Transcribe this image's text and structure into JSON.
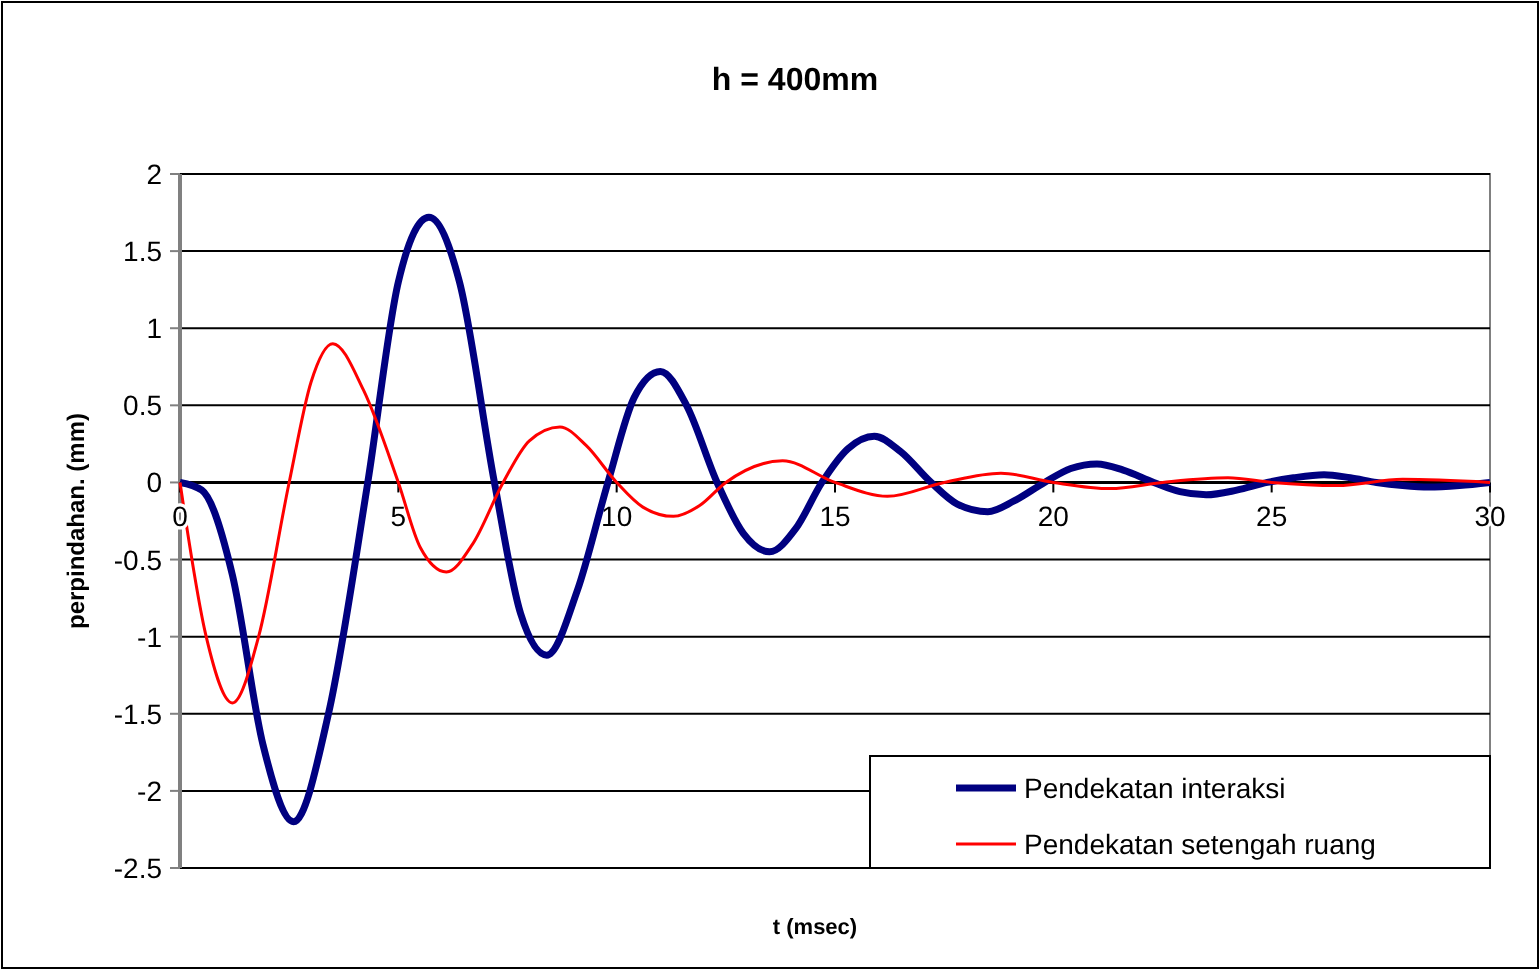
{
  "chart_data": {
    "type": "line",
    "title": "h = 400mm",
    "xlabel": "t (msec)",
    "ylabel": "perpindahan. (mm)",
    "xlim": [
      0,
      30
    ],
    "xticks": [
      0,
      5,
      10,
      15,
      20,
      25,
      30
    ],
    "ylim": [
      -2.5,
      2
    ],
    "yticks": [
      -2.5,
      -2,
      -1.5,
      -1,
      -0.5,
      0,
      0.5,
      1,
      1.5,
      2
    ],
    "grid": "y",
    "legend": "bottom right",
    "marker": "none",
    "line_style": "solid",
    "series": [
      {
        "name": "Pendekatan interaksi",
        "color": "#000080",
        "x": [
          0,
          0.5,
          1.2,
          1.9,
          2.6,
          3.4,
          4.3,
          5,
          5.7,
          6.4,
          7.2,
          7.8,
          8.4,
          9.1,
          9.8,
          10.4,
          11,
          11.6,
          12.3,
          12.9,
          13.5,
          14.1,
          14.7,
          15.3,
          15.9,
          16.5,
          17.2,
          17.8,
          18.5,
          19.1,
          19.8,
          20.4,
          21,
          21.6,
          22.3,
          22.9,
          23.5,
          24.2,
          24.9,
          25.5,
          26.2,
          26.8,
          27.4,
          28,
          28.6,
          29.3,
          30
        ],
        "values": [
          0,
          -0.05,
          -0.6,
          -1.7,
          -2.2,
          -1.5,
          0,
          1.3,
          1.72,
          1.3,
          0,
          -0.85,
          -1.12,
          -0.7,
          0,
          0.55,
          0.72,
          0.5,
          0,
          -0.33,
          -0.45,
          -0.3,
          0,
          0.22,
          0.3,
          0.2,
          0,
          -0.14,
          -0.19,
          -0.12,
          0,
          0.09,
          0.12,
          0.08,
          0,
          -0.06,
          -0.08,
          -0.05,
          0,
          0.03,
          0.05,
          0.03,
          0,
          -0.02,
          -0.03,
          -0.02,
          0
        ]
      },
      {
        "name": "Pendekatan setengah ruang",
        "color": "#ff0000",
        "x": [
          0,
          0.6,
          1.2,
          1.8,
          2.5,
          3,
          3.5,
          4.2,
          5,
          5.5,
          6.1,
          6.7,
          7.4,
          8,
          8.7,
          9.3,
          10,
          10.6,
          11.3,
          11.9,
          12.5,
          13.8,
          15,
          16.2,
          17.5,
          18.8,
          20,
          21.3,
          22.5,
          24,
          25,
          26.5,
          28,
          30
        ],
        "values": [
          0,
          -1,
          -1.43,
          -1,
          0,
          0.65,
          0.9,
          0.6,
          0,
          -0.42,
          -0.58,
          -0.4,
          0,
          0.27,
          0.36,
          0.24,
          0,
          -0.16,
          -0.22,
          -0.15,
          0,
          0.14,
          0,
          -0.09,
          0,
          0.06,
          0,
          -0.04,
          0,
          0.03,
          0,
          -0.02,
          0.02,
          0
        ]
      }
    ]
  }
}
